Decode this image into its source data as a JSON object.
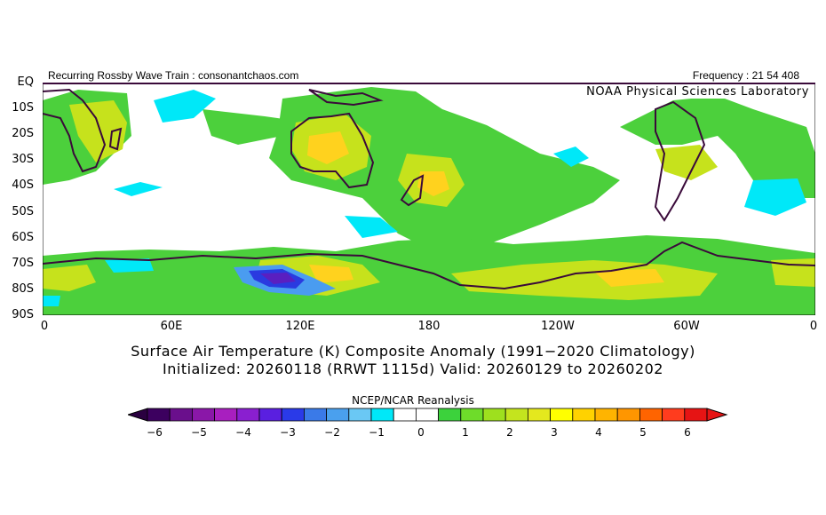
{
  "header": {
    "left_text": "Recurring Rossby Wave Train : consonantchaos.com",
    "right_text": "Frequency : 21 54 408",
    "lab_text": "NOAA Physical Sciences Laboratory"
  },
  "axes": {
    "lat_labels": [
      "EQ",
      "10S",
      "20S",
      "30S",
      "40S",
      "50S",
      "60S",
      "70S",
      "80S",
      "90S"
    ],
    "lon_labels": [
      "0",
      "60E",
      "120E",
      "180",
      "120W",
      "60W",
      "0"
    ]
  },
  "title": {
    "line1": "Surface Air Temperature (K) Composite Anomaly (1991−2020 Climatology)",
    "line2": "Initialized: 20260118 (RRWT 1115d) Valid: 20260129 to 20260202"
  },
  "colorbar": {
    "label": "NCEP/NCAR Reanalysis",
    "ticks": [
      "−6",
      "−5",
      "−4",
      "−3",
      "−2",
      "−1",
      "0",
      "1",
      "2",
      "3",
      "4",
      "5",
      "6"
    ],
    "colors": [
      "#3c005f",
      "#6a0f8c",
      "#8a17a8",
      "#a81fbf",
      "#8a1fd0",
      "#5a1fe0",
      "#2a3ae8",
      "#3a7ae8",
      "#4aa0ee",
      "#6ac8f4",
      "#00e8f8",
      "#ffffff",
      "#ffffff",
      "#3cd23c",
      "#6edc2a",
      "#9ee01e",
      "#c4e41e",
      "#e4e81e",
      "#ffff00",
      "#ffd200",
      "#ffb400",
      "#ff9600",
      "#ff6400",
      "#ff3c1e",
      "#e61414"
    ],
    "under_color": "#2a0040",
    "over_color": "#e61414"
  }
}
